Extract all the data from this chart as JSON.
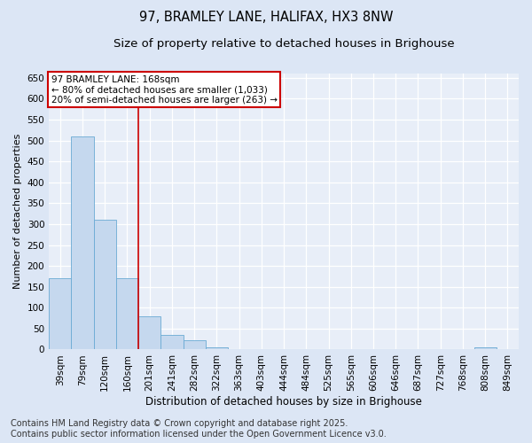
{
  "title": "97, BRAMLEY LANE, HALIFAX, HX3 8NW",
  "subtitle": "Size of property relative to detached houses in Brighouse",
  "xlabel": "Distribution of detached houses by size in Brighouse",
  "ylabel": "Number of detached properties",
  "categories": [
    "39sqm",
    "79sqm",
    "120sqm",
    "160sqm",
    "201sqm",
    "241sqm",
    "282sqm",
    "322sqm",
    "363sqm",
    "403sqm",
    "444sqm",
    "484sqm",
    "525sqm",
    "565sqm",
    "606sqm",
    "646sqm",
    "687sqm",
    "727sqm",
    "768sqm",
    "808sqm",
    "849sqm"
  ],
  "values": [
    170,
    510,
    310,
    170,
    80,
    35,
    22,
    6,
    1,
    1,
    1,
    0,
    0,
    0,
    0,
    0,
    0,
    0,
    0,
    5,
    0
  ],
  "bar_color": "#c5d8ee",
  "bar_edge_color": "#6aaad4",
  "vline_color": "#cc0000",
  "annotation_text": "97 BRAMLEY LANE: 168sqm\n← 80% of detached houses are smaller (1,033)\n20% of semi-detached houses are larger (263) →",
  "annotation_box_color": "#ffffff",
  "annotation_box_edge": "#cc0000",
  "ylim": [
    0,
    660
  ],
  "yticks": [
    0,
    50,
    100,
    150,
    200,
    250,
    300,
    350,
    400,
    450,
    500,
    550,
    600,
    650
  ],
  "bg_color": "#dce6f5",
  "plot_bg_color": "#e8eef8",
  "grid_color": "#ffffff",
  "footer": "Contains HM Land Registry data © Crown copyright and database right 2025.\nContains public sector information licensed under the Open Government Licence v3.0.",
  "title_fontsize": 10.5,
  "subtitle_fontsize": 9.5,
  "footer_fontsize": 7,
  "annotation_fontsize": 7.5,
  "tick_fontsize": 7.5,
  "ylabel_fontsize": 8,
  "xlabel_fontsize": 8.5
}
